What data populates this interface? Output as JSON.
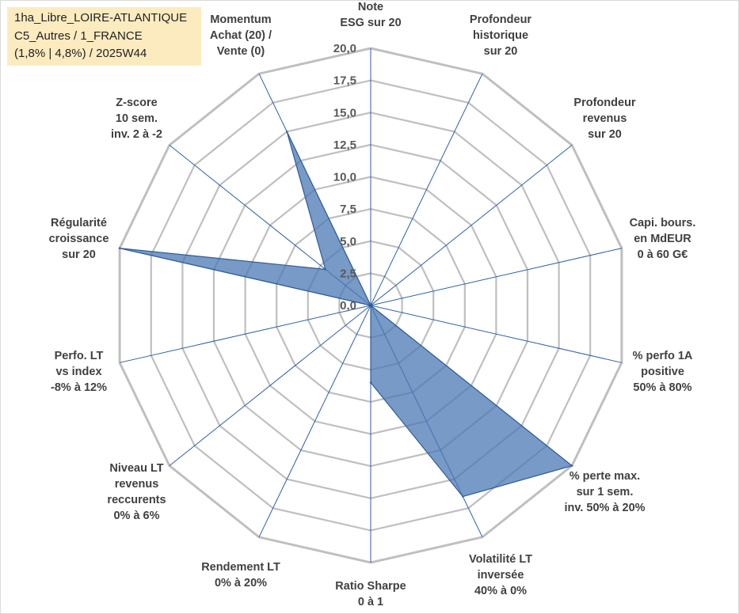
{
  "info_box": {
    "line1": "1ha_Libre_LOIRE-ATLANTIQUE",
    "line2": "C5_Autres / 1_FRANCE",
    "line3": "(1,8% | 4,8%) / 2025W44"
  },
  "colors": {
    "grid": "#bfbfbf",
    "spoke": "#2e5fa8",
    "fill": "#4a78b3",
    "fill_opacity": 0.75,
    "stroke": "#2f5a9a",
    "text": "#404040",
    "tick_text": "#595959"
  },
  "chart_data": {
    "type": "radar",
    "categories": [
      "Note ESG sur 20",
      "Profondeur historique sur 20",
      "Profondeur revenus sur 20",
      "Capi. bours. en MdEUR 0 à 60 G€",
      "% perfo 1A positive 50% à 80%",
      "% perte max. sur 1 sem. inv. 50% à 20%",
      "Volatilité LT inversée 40% à 0%",
      "Ratio Sharpe 0 à 1",
      "Rendement LT 0% à 20%",
      "Niveau LT revenus reccurents 0% à 6%",
      "Perfo. LT vs index -8% à 12%",
      "Régularité croissance sur 20",
      "Z-score 10 sem. inv. 2 à -2",
      "Momentum Achat (20) / Vente (0)"
    ],
    "category_lines": [
      [
        "Note",
        "ESG sur 20"
      ],
      [
        "Profondeur",
        "historique",
        "sur 20"
      ],
      [
        "Profondeur",
        "revenus",
        "sur 20"
      ],
      [
        "Capi. bours.",
        "en MdEUR",
        "0 à 60 G€"
      ],
      [
        "% perfo 1A",
        "positive",
        "50% à 80%"
      ],
      [
        "% perte max.",
        "sur 1 sem.",
        "inv. 50% à 20%"
      ],
      [
        "Volatilité LT",
        "inversée",
        "40% à 0%"
      ],
      [
        "Ratio Sharpe",
        "0 à 1"
      ],
      [
        "Rendement LT",
        "0% à 20%"
      ],
      [
        "Niveau LT",
        "revenus",
        "reccurents",
        "0% à 6%"
      ],
      [
        "Perfo. LT",
        "vs index",
        "-8% à 12%"
      ],
      [
        "Régularité",
        "croissance",
        "sur 20"
      ],
      [
        "Z-score",
        "10 sem.",
        "inv. 2 à -2"
      ],
      [
        "Momentum",
        "Achat (20) /",
        "Vente (0)"
      ]
    ],
    "series": [
      {
        "values": [
          0,
          0,
          0,
          0,
          0,
          20,
          16.5,
          6,
          0,
          0,
          0,
          20,
          4.5,
          15
        ]
      }
    ],
    "rmin": 0,
    "rmax": 20,
    "rticks": [
      "0,0",
      "2,5",
      "5,0",
      "7,5",
      "10,0",
      "12,5",
      "15,0",
      "17,5",
      "20,0"
    ],
    "grid": true
  }
}
